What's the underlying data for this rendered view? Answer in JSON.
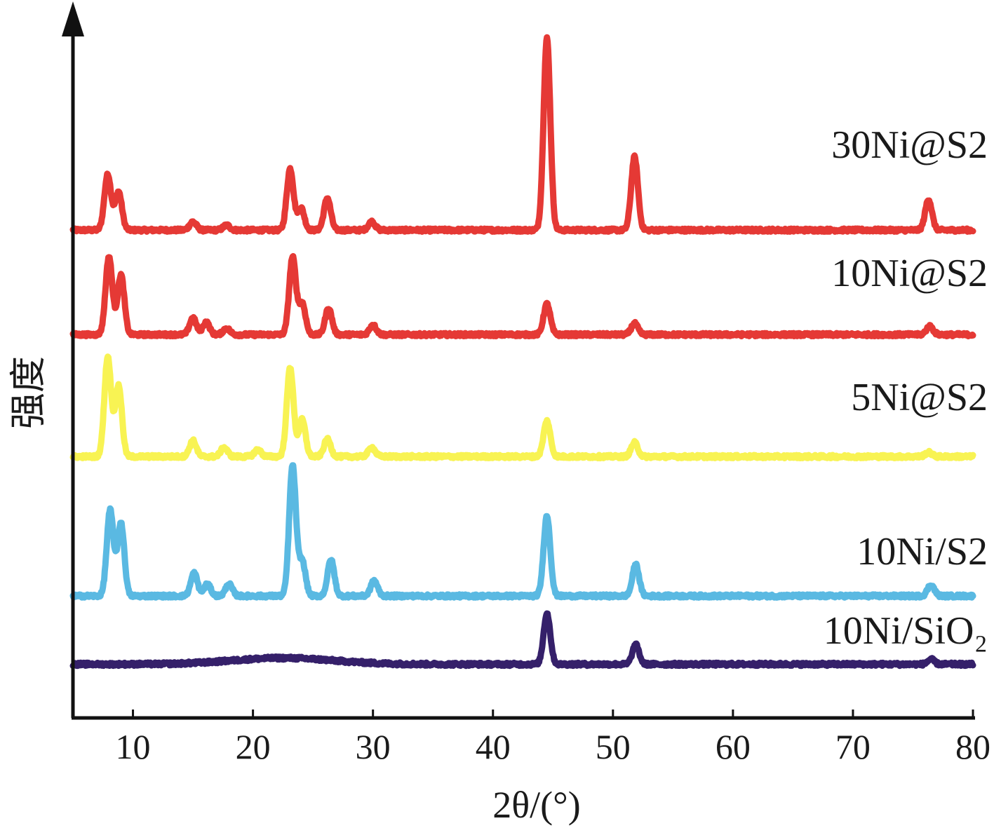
{
  "chart_data": {
    "type": "line",
    "title": "",
    "xlabel": "2θ/(°)",
    "ylabel": "强度",
    "xlim": [
      5,
      80
    ],
    "ylim": [
      0,
      100
    ],
    "xticks": [
      10,
      20,
      30,
      40,
      50,
      60,
      70,
      80
    ],
    "grid": false,
    "legend": "none",
    "series": [
      {
        "name": "30Ni@S2",
        "color": "#e53935",
        "baseline": 70,
        "peaks": [
          {
            "x": 7.9,
            "h": 8.0
          },
          {
            "x": 8.8,
            "h": 5.5
          },
          {
            "x": 15.0,
            "h": 1.2
          },
          {
            "x": 17.8,
            "h": 0.7
          },
          {
            "x": 23.1,
            "h": 8.8
          },
          {
            "x": 24.0,
            "h": 3.2
          },
          {
            "x": 26.2,
            "h": 4.6
          },
          {
            "x": 29.9,
            "h": 1.2
          },
          {
            "x": 44.5,
            "h": 27.5
          },
          {
            "x": 51.8,
            "h": 10.5
          },
          {
            "x": 76.3,
            "h": 4.4
          }
        ]
      },
      {
        "name": "10Ni@S2",
        "color": "#e53935",
        "baseline": 55,
        "peaks": [
          {
            "x": 8.0,
            "h": 11.2
          },
          {
            "x": 9.0,
            "h": 8.6
          },
          {
            "x": 15.0,
            "h": 2.4
          },
          {
            "x": 16.1,
            "h": 1.8
          },
          {
            "x": 17.8,
            "h": 0.9
          },
          {
            "x": 23.3,
            "h": 11.1
          },
          {
            "x": 24.1,
            "h": 4.5
          },
          {
            "x": 26.3,
            "h": 3.8
          },
          {
            "x": 30.0,
            "h": 1.4
          },
          {
            "x": 44.5,
            "h": 4.4
          },
          {
            "x": 51.8,
            "h": 1.6
          },
          {
            "x": 76.4,
            "h": 1.2
          }
        ]
      },
      {
        "name": "5Ni@S2",
        "color": "#f8f353",
        "baseline": 37.5,
        "peaks": [
          {
            "x": 7.9,
            "h": 14.3
          },
          {
            "x": 8.8,
            "h": 10.2
          },
          {
            "x": 15.0,
            "h": 2.3
          },
          {
            "x": 17.6,
            "h": 1.3
          },
          {
            "x": 20.4,
            "h": 1.0
          },
          {
            "x": 23.1,
            "h": 12.8
          },
          {
            "x": 24.1,
            "h": 5.3
          },
          {
            "x": 26.2,
            "h": 2.5
          },
          {
            "x": 29.9,
            "h": 1.3
          },
          {
            "x": 44.5,
            "h": 5.1
          },
          {
            "x": 51.8,
            "h": 2.0
          },
          {
            "x": 76.3,
            "h": 0.6
          }
        ]
      },
      {
        "name": "10Ni/S2",
        "color": "#5ab9e2",
        "baseline": 17.5,
        "peaks": [
          {
            "x": 8.1,
            "h": 12.3
          },
          {
            "x": 9.0,
            "h": 10.5
          },
          {
            "x": 15.1,
            "h": 3.3
          },
          {
            "x": 16.2,
            "h": 1.7
          },
          {
            "x": 18.0,
            "h": 1.7
          },
          {
            "x": 23.3,
            "h": 18.7
          },
          {
            "x": 24.1,
            "h": 5.0
          },
          {
            "x": 26.5,
            "h": 5.2
          },
          {
            "x": 30.1,
            "h": 2.2
          },
          {
            "x": 44.5,
            "h": 11.5
          },
          {
            "x": 51.9,
            "h": 4.5
          },
          {
            "x": 76.5,
            "h": 1.6
          }
        ]
      },
      {
        "name": "10Ni/SiO₂",
        "color": "#35206a",
        "baseline": 7.7,
        "peaks": [
          {
            "x": 44.5,
            "h": 7.3
          },
          {
            "x": 51.9,
            "h": 2.8
          },
          {
            "x": 76.5,
            "h": 0.7
          }
        ]
      }
    ]
  }
}
